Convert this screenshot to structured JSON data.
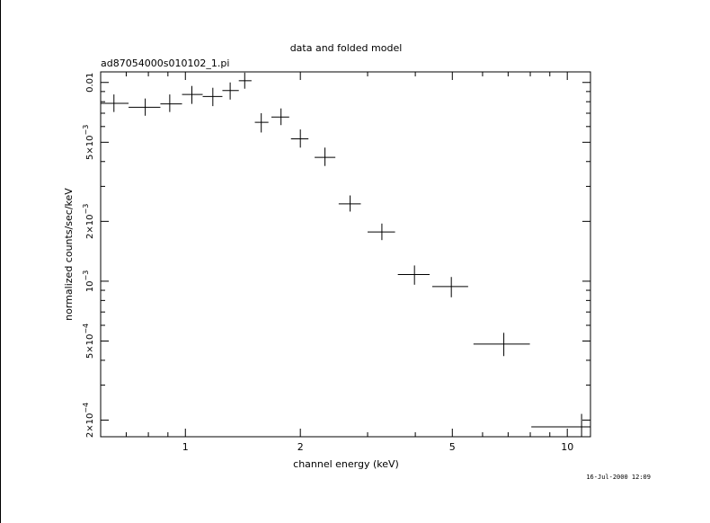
{
  "chart_data": {
    "type": "scatter",
    "title": "data and folded model",
    "subtitle": "ad87054000s010102_1.pi",
    "xlabel": "channel energy (keV)",
    "ylabel": "normalized counts/sec/keV",
    "timestamp": "16-Jul-2000 12:09",
    "x_scale": "log",
    "y_scale": "log",
    "xlim": [
      0.6,
      11.5
    ],
    "ylim": [
      0.000165,
      0.0113
    ],
    "x_ticks": [
      {
        "value": 1,
        "label": "1"
      },
      {
        "value": 2,
        "label": "2"
      },
      {
        "value": 5,
        "label": "5"
      },
      {
        "value": 10,
        "label": "10"
      }
    ],
    "y_ticks": [
      {
        "value": 0.0002,
        "mant": "2",
        "exp": "−4"
      },
      {
        "value": 0.0005,
        "mant": "5",
        "exp": "−4"
      },
      {
        "value": 0.001,
        "mant": "10",
        "exp": "−3"
      },
      {
        "value": 0.002,
        "mant": "2",
        "exp": "−3"
      },
      {
        "value": 0.005,
        "mant": "5",
        "exp": "−3"
      },
      {
        "value": 0.01,
        "mant": "0.01",
        "exp": ""
      }
    ],
    "points": [
      {
        "x": 0.65,
        "xlo": 0.6,
        "xhi": 0.71,
        "y": 0.00785,
        "ylo": 0.0071,
        "yhi": 0.0087
      },
      {
        "x": 0.785,
        "xlo": 0.71,
        "xhi": 0.86,
        "y": 0.0075,
        "ylo": 0.0068,
        "yhi": 0.0083
      },
      {
        "x": 0.91,
        "xlo": 0.86,
        "xhi": 0.98,
        "y": 0.0078,
        "ylo": 0.0071,
        "yhi": 0.0087
      },
      {
        "x": 1.04,
        "xlo": 0.98,
        "xhi": 1.11,
        "y": 0.0087,
        "ylo": 0.0078,
        "yhi": 0.0096
      },
      {
        "x": 1.18,
        "xlo": 1.11,
        "xhi": 1.25,
        "y": 0.0085,
        "ylo": 0.0076,
        "yhi": 0.0094
      },
      {
        "x": 1.31,
        "xlo": 1.25,
        "xhi": 1.38,
        "y": 0.0091,
        "ylo": 0.0082,
        "yhi": 0.01
      },
      {
        "x": 1.43,
        "xlo": 1.38,
        "xhi": 1.49,
        "y": 0.0102,
        "ylo": 0.0093,
        "yhi": 0.0112
      },
      {
        "x": 1.58,
        "xlo": 1.52,
        "xhi": 1.65,
        "y": 0.0063,
        "ylo": 0.0056,
        "yhi": 0.007
      },
      {
        "x": 1.78,
        "xlo": 1.68,
        "xhi": 1.87,
        "y": 0.0067,
        "ylo": 0.0061,
        "yhi": 0.0074
      },
      {
        "x": 2.0,
        "xlo": 1.89,
        "xhi": 2.1,
        "y": 0.0052,
        "ylo": 0.0047,
        "yhi": 0.0058
      },
      {
        "x": 2.32,
        "xlo": 2.18,
        "xhi": 2.47,
        "y": 0.0042,
        "ylo": 0.0038,
        "yhi": 0.0047
      },
      {
        "x": 2.7,
        "xlo": 2.52,
        "xhi": 2.88,
        "y": 0.00245,
        "ylo": 0.00224,
        "yhi": 0.0027
      },
      {
        "x": 3.27,
        "xlo": 3.0,
        "xhi": 3.54,
        "y": 0.00177,
        "ylo": 0.00161,
        "yhi": 0.00195
      },
      {
        "x": 3.98,
        "xlo": 3.6,
        "xhi": 4.36,
        "y": 0.00108,
        "ylo": 0.00096,
        "yhi": 0.0012
      },
      {
        "x": 4.97,
        "xlo": 4.43,
        "xhi": 5.5,
        "y": 0.00094,
        "ylo": 0.00083,
        "yhi": 0.00105
      },
      {
        "x": 6.82,
        "xlo": 5.68,
        "xhi": 7.98,
        "y": 0.000483,
        "ylo": 0.00042,
        "yhi": 0.00055
      },
      {
        "x": 10.9,
        "xlo": 8.05,
        "xhi": 11.5,
        "y": 0.000185,
        "ylo": 0.000165,
        "yhi": 0.000215
      }
    ],
    "grid": false,
    "legend": "none"
  }
}
